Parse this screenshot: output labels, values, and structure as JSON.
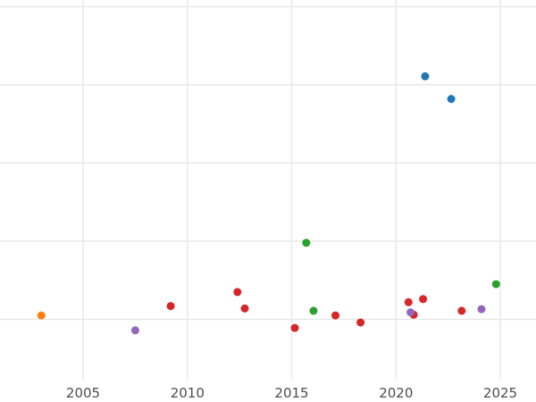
{
  "chart_data": {
    "type": "scatter",
    "title": "",
    "subtitle": "",
    "xlabel": "",
    "ylabel": "",
    "xlim": [
      2001.0,
      2026.7
    ],
    "ylim": [
      0,
      5.1
    ],
    "x_ticks": [
      2005,
      2010,
      2015,
      2020,
      2025
    ],
    "y_gridline_values": [
      1,
      2,
      3,
      4,
      5
    ],
    "grid": true,
    "legend": "none",
    "series": [
      {
        "name": "blue",
        "color": "#1f77b4",
        "points": [
          [
            2021.4,
            4.11
          ],
          [
            2022.65,
            3.82
          ]
        ]
      },
      {
        "name": "orange",
        "color": "#ff7f0e",
        "points": [
          [
            2003.0,
            1.05
          ]
        ]
      },
      {
        "name": "green",
        "color": "#2ca02c",
        "points": [
          [
            2015.7,
            1.98
          ],
          [
            2016.05,
            1.11
          ],
          [
            2024.8,
            1.45
          ]
        ]
      },
      {
        "name": "red",
        "color": "#d62728",
        "points": [
          [
            2009.2,
            1.17
          ],
          [
            2012.4,
            1.35
          ],
          [
            2012.75,
            1.14
          ],
          [
            2015.15,
            0.89
          ],
          [
            2017.1,
            1.05
          ],
          [
            2018.3,
            0.96
          ],
          [
            2020.6,
            1.22
          ],
          [
            2020.85,
            1.06
          ],
          [
            2021.3,
            1.26
          ],
          [
            2023.15,
            1.11
          ]
        ]
      },
      {
        "name": "purple",
        "color": "#9467bd",
        "points": [
          [
            2007.5,
            0.86
          ],
          [
            2020.7,
            1.09
          ],
          [
            2024.1,
            1.13
          ]
        ]
      }
    ],
    "style": {
      "background_color": "#ffffff",
      "grid_color": "#e7e7e7",
      "tick_label_color": "#4d4d4d",
      "point_radius": 4.5,
      "tick_font_size": 15
    }
  }
}
